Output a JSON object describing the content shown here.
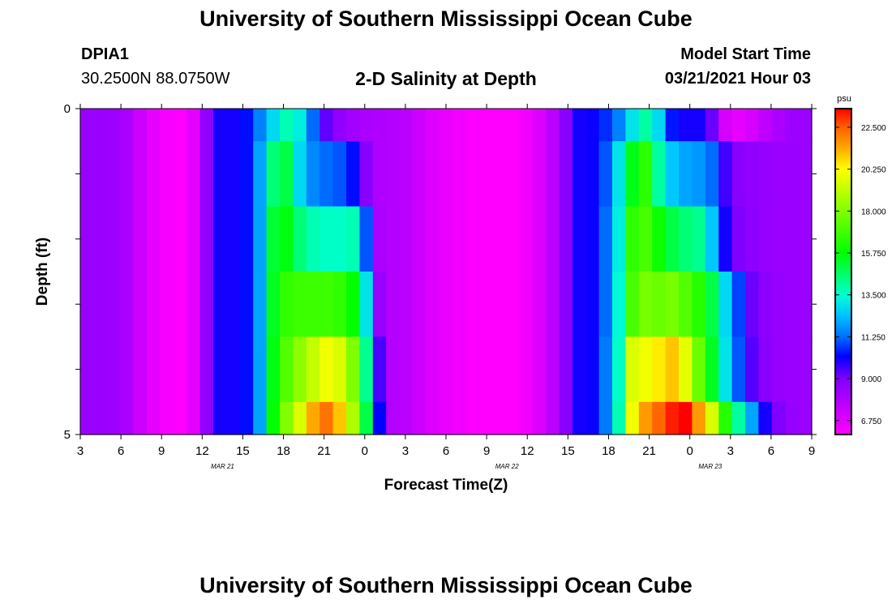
{
  "header": {
    "title": "University of Southern Mississippi Ocean Cube",
    "station_id": "DPIA1",
    "station_coords": "30.2500N 88.0750W",
    "subtitle": "2-D Salinity at Depth",
    "model_start_label": "Model Start Time",
    "model_start_value": "03/21/2021 Hour 03"
  },
  "footer": {
    "title": "University of Southern Mississippi Ocean Cube"
  },
  "chart_data": {
    "type": "heatmap",
    "title": "2-D Salinity at Depth",
    "xlabel": "Forecast Time(Z)",
    "ylabel": "Depth (ft)",
    "x_tick_labels": [
      "3",
      "6",
      "9",
      "12",
      "15",
      "18",
      "21",
      "0",
      "3",
      "6",
      "9",
      "12",
      "15",
      "18",
      "21",
      "0",
      "3",
      "6",
      "9"
    ],
    "x_date_labels": [
      {
        "label": "MAR 21",
        "tick_index": 4
      },
      {
        "label": "MAR 22",
        "tick_index": 11
      },
      {
        "label": "MAR 23",
        "tick_index": 16
      }
    ],
    "y_tick_labels": [
      {
        "label": "0",
        "value": 0
      },
      {
        "label": "5",
        "value": 5
      }
    ],
    "ylim": [
      0,
      5
    ],
    "x_hours": [
      0,
      54
    ],
    "colorbar": {
      "unit": "psu",
      "min": 6.0,
      "max": 23.5,
      "tick_values": [
        22.5,
        20.25,
        18.0,
        15.75,
        13.5,
        11.25,
        9.0,
        6.75
      ],
      "tick_labels": [
        "22.500",
        "20.250",
        "18.000",
        "15.750",
        "13.500",
        "11.250",
        "9.000",
        "6.750"
      ],
      "colors": [
        {
          "v": 6.0,
          "c": "#ff00ff"
        },
        {
          "v": 7.5,
          "c": "#c000ff"
        },
        {
          "v": 9.0,
          "c": "#8000ff"
        },
        {
          "v": 10.2,
          "c": "#0000ff"
        },
        {
          "v": 11.25,
          "c": "#0070ff"
        },
        {
          "v": 12.5,
          "c": "#00c8ff"
        },
        {
          "v": 13.5,
          "c": "#00ffd0"
        },
        {
          "v": 15.75,
          "c": "#00ff00"
        },
        {
          "v": 18.0,
          "c": "#80ff00"
        },
        {
          "v": 20.25,
          "c": "#ffff00"
        },
        {
          "v": 21.5,
          "c": "#ffa000"
        },
        {
          "v": 22.5,
          "c": "#ff6000"
        },
        {
          "v": 23.5,
          "c": "#ff0000"
        }
      ]
    },
    "depth_rows": [
      {
        "depth_range": [
          0,
          0.5
        ],
        "values": [
          8.4,
          8.4,
          8.3,
          8.0,
          7.2,
          6.6,
          6.2,
          6.0,
          6.6,
          8.6,
          10.0,
          10.0,
          10.3,
          11.5,
          12.8,
          13.8,
          13.2,
          11.2,
          9.3,
          8.6,
          8.2,
          8.0,
          7.9,
          7.8,
          7.6,
          7.2,
          6.8,
          6.5,
          6.3,
          6.1,
          6.0,
          6.0,
          6.0,
          6.3,
          6.8,
          7.6,
          8.8,
          10.0,
          10.1,
          10.6,
          11.5,
          13.0,
          14.0,
          12.8,
          10.4,
          10.0,
          10.0,
          9.2,
          7.0,
          6.6,
          7.0,
          7.5,
          8.0,
          8.3,
          8.4
        ]
      },
      {
        "depth_range": [
          0.5,
          1.5
        ],
        "values": [
          8.4,
          8.4,
          8.3,
          8.0,
          7.2,
          6.6,
          6.2,
          6.0,
          6.6,
          8.6,
          10.0,
          10.0,
          10.3,
          12.0,
          14.5,
          15.0,
          12.8,
          11.6,
          11.2,
          11.0,
          10.3,
          8.8,
          7.9,
          7.8,
          7.6,
          7.2,
          6.8,
          6.5,
          6.3,
          6.1,
          6.0,
          6.0,
          6.0,
          6.3,
          6.8,
          7.6,
          8.8,
          10.0,
          10.1,
          11.0,
          13.0,
          15.5,
          16.5,
          14.0,
          12.5,
          12.0,
          11.8,
          11.2,
          9.6,
          8.8,
          8.6,
          8.5,
          8.4,
          8.4,
          8.4
        ]
      },
      {
        "depth_range": [
          1.5,
          2.5
        ],
        "values": [
          8.4,
          8.4,
          8.3,
          8.0,
          7.2,
          6.6,
          6.2,
          6.0,
          6.6,
          8.6,
          10.0,
          10.0,
          10.3,
          12.0,
          15.2,
          15.6,
          14.5,
          13.8,
          13.6,
          13.6,
          13.8,
          11.0,
          8.0,
          7.8,
          7.6,
          7.2,
          6.8,
          6.5,
          6.3,
          6.1,
          6.0,
          6.0,
          6.0,
          6.3,
          6.8,
          7.6,
          8.8,
          10.0,
          10.1,
          11.2,
          13.2,
          16.6,
          17.0,
          16.0,
          15.0,
          14.5,
          14.2,
          12.5,
          10.0,
          9.0,
          8.7,
          8.5,
          8.4,
          8.4,
          8.4
        ]
      },
      {
        "depth_range": [
          2.5,
          3.5
        ],
        "values": [
          8.4,
          8.4,
          8.3,
          8.0,
          7.2,
          6.6,
          6.2,
          6.0,
          6.6,
          8.6,
          10.0,
          10.0,
          10.3,
          12.0,
          15.4,
          16.6,
          16.8,
          16.8,
          16.8,
          16.6,
          15.8,
          13.0,
          8.5,
          7.8,
          7.6,
          7.2,
          6.8,
          6.5,
          6.3,
          6.1,
          6.0,
          6.0,
          6.0,
          6.3,
          6.8,
          7.6,
          8.8,
          10.0,
          10.1,
          11.2,
          13.4,
          17.0,
          17.8,
          17.6,
          17.8,
          17.2,
          16.4,
          15.0,
          12.8,
          10.8,
          9.2,
          8.7,
          8.5,
          8.4,
          8.4
        ]
      },
      {
        "depth_range": [
          3.5,
          4.5
        ],
        "values": [
          8.4,
          8.4,
          8.3,
          8.0,
          7.2,
          6.6,
          6.2,
          6.0,
          6.6,
          8.6,
          10.0,
          10.0,
          10.3,
          12.0,
          15.6,
          17.2,
          18.2,
          19.2,
          20.0,
          19.6,
          18.0,
          14.2,
          9.5,
          7.8,
          7.6,
          7.2,
          6.8,
          6.5,
          6.3,
          6.1,
          6.0,
          6.0,
          6.0,
          6.3,
          6.8,
          7.6,
          8.8,
          10.0,
          10.1,
          11.4,
          13.6,
          19.6,
          20.0,
          20.5,
          21.0,
          19.8,
          17.6,
          15.4,
          13.0,
          11.0,
          9.4,
          8.8,
          8.5,
          8.4,
          8.4
        ]
      },
      {
        "depth_range": [
          4.5,
          5.0
        ],
        "values": [
          8.4,
          8.4,
          8.3,
          8.0,
          7.2,
          6.6,
          6.2,
          6.0,
          6.6,
          8.6,
          10.0,
          10.0,
          10.3,
          12.0,
          15.8,
          18.0,
          19.6,
          21.4,
          22.2,
          21.0,
          18.8,
          15.0,
          10.2,
          7.8,
          7.6,
          7.2,
          6.8,
          6.5,
          6.3,
          6.1,
          6.0,
          6.0,
          6.0,
          6.3,
          6.8,
          7.6,
          8.8,
          10.0,
          10.1,
          11.4,
          13.8,
          20.0,
          21.6,
          22.4,
          23.2,
          23.5,
          21.6,
          19.6,
          16.4,
          14.0,
          12.0,
          10.0,
          9.0,
          8.5,
          8.4
        ]
      }
    ]
  }
}
